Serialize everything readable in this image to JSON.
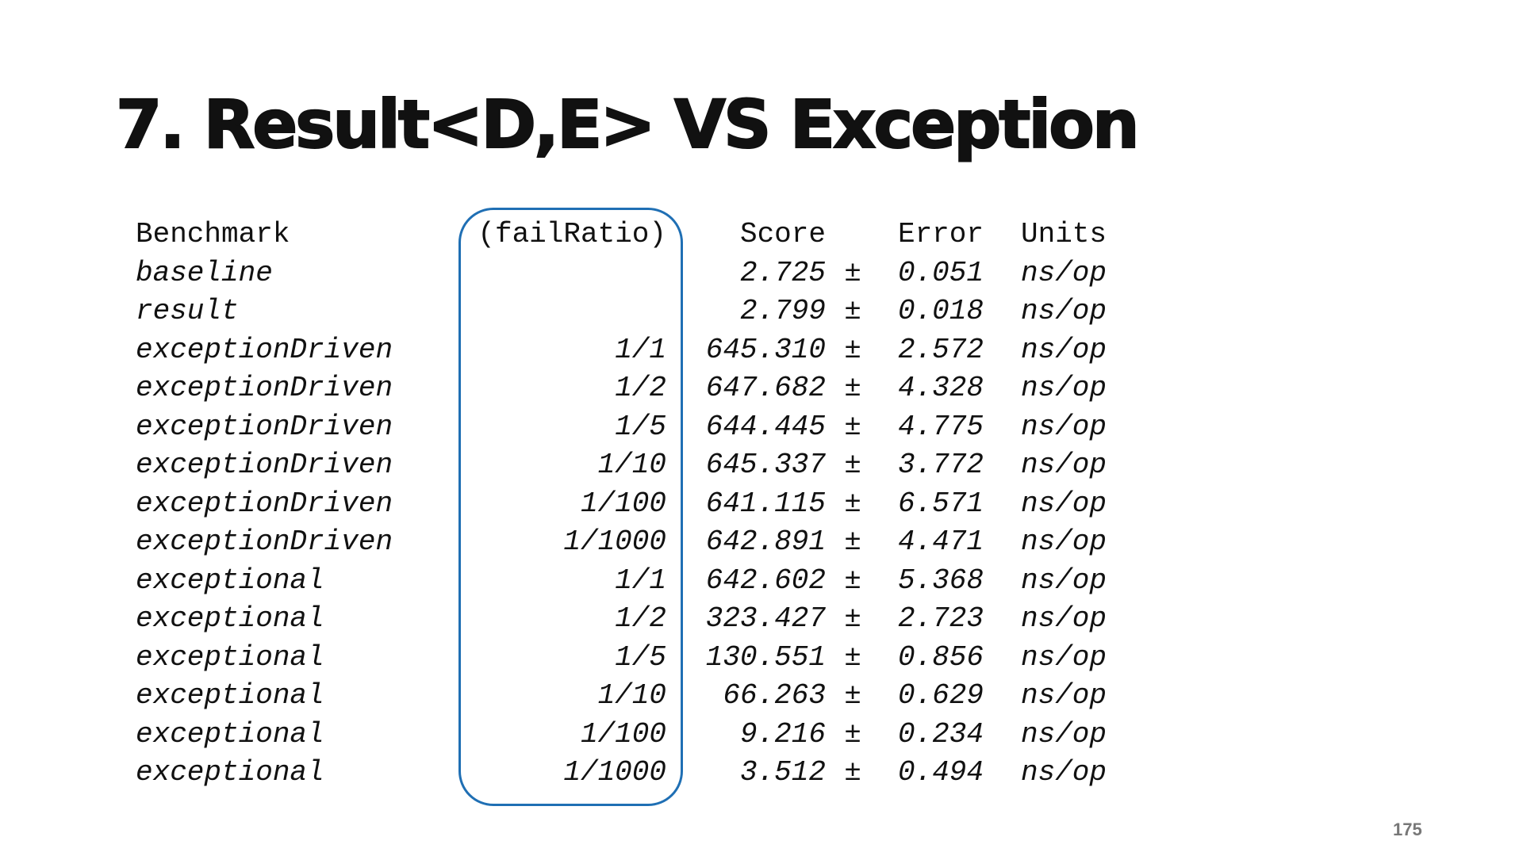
{
  "title": "7. Result<D,E> VS Exception",
  "table": {
    "header": [
      "Benchmark",
      "(failRatio)",
      "Score",
      "Error",
      "Units"
    ],
    "rows": [
      [
        "baseline",
        "",
        "2.725",
        "±",
        "0.051",
        "ns/op"
      ],
      [
        "result",
        "",
        "2.799",
        "±",
        "0.018",
        "ns/op"
      ],
      [
        "exceptionDriven",
        "1/1",
        "645.310",
        "±",
        "2.572",
        "ns/op"
      ],
      [
        "exceptionDriven",
        "1/2",
        "647.682",
        "±",
        "4.328",
        "ns/op"
      ],
      [
        "exceptionDriven",
        "1/5",
        "644.445",
        "±",
        "4.775",
        "ns/op"
      ],
      [
        "exceptionDriven",
        "1/10",
        "645.337",
        "±",
        "3.772",
        "ns/op"
      ],
      [
        "exceptionDriven",
        "1/100",
        "641.115",
        "±",
        "6.571",
        "ns/op"
      ],
      [
        "exceptionDriven",
        "1/1000",
        "642.891",
        "±",
        "4.471",
        "ns/op"
      ],
      [
        "exceptional",
        "1/1",
        "642.602",
        "±",
        "5.368",
        "ns/op"
      ],
      [
        "exceptional",
        "1/2",
        "323.427",
        "±",
        "2.723",
        "ns/op"
      ],
      [
        "exceptional",
        "1/5",
        "130.551",
        "±",
        "0.856",
        "ns/op"
      ],
      [
        "exceptional",
        "1/10",
        "66.263",
        "±",
        "0.629",
        "ns/op"
      ],
      [
        "exceptional",
        "1/100",
        "9.216",
        "±",
        "0.234",
        "ns/op"
      ],
      [
        "exceptional",
        "1/1000",
        "3.512",
        "±",
        "0.494",
        "ns/op"
      ]
    ]
  },
  "page_number": "175"
}
